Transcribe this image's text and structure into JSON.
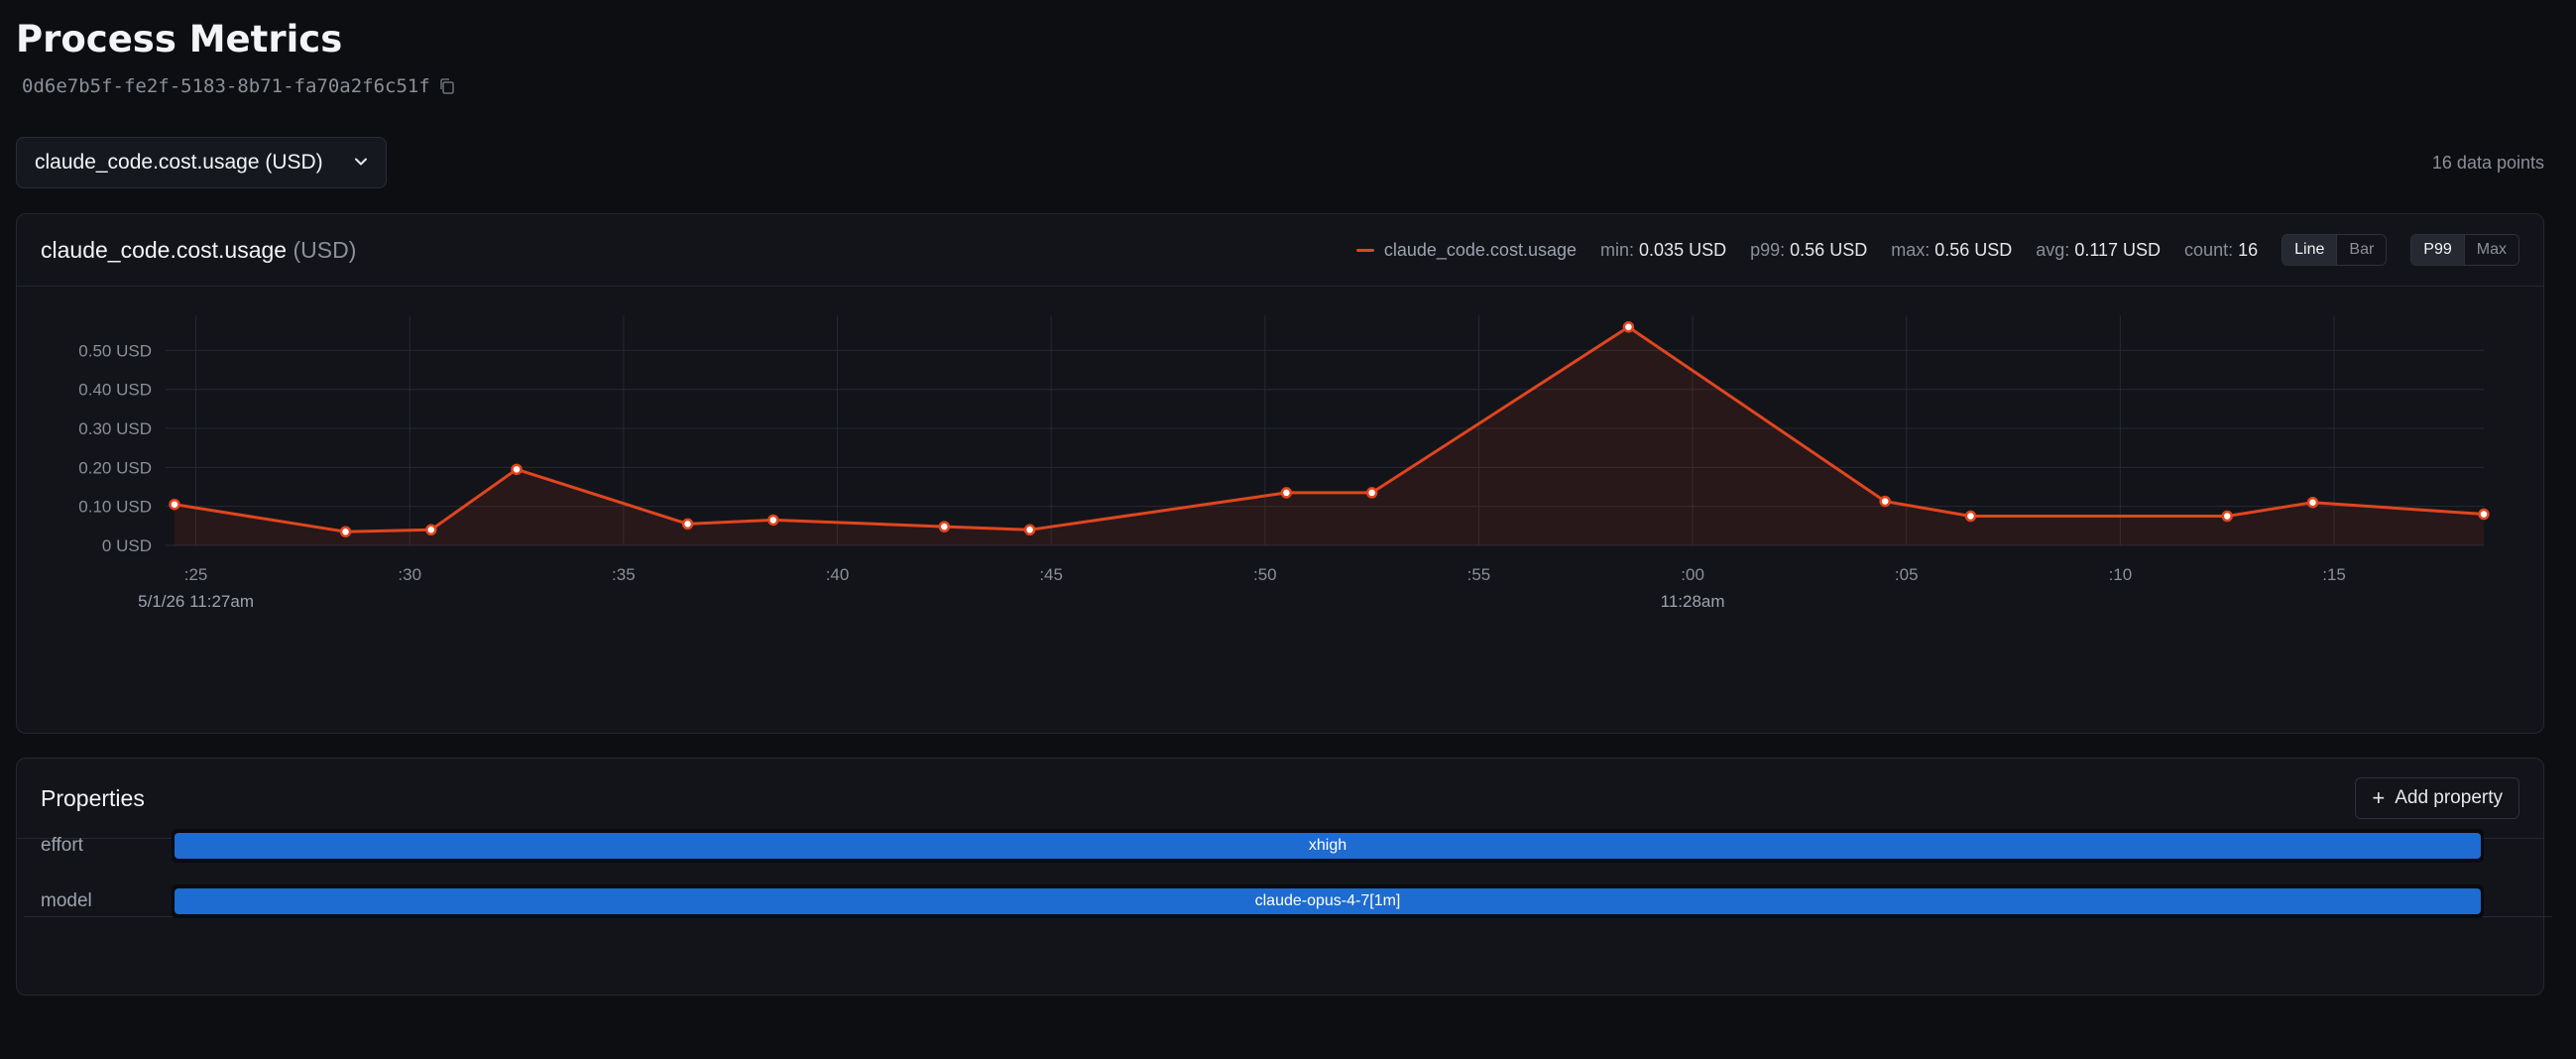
{
  "page": {
    "title": "Process Metrics",
    "process_id": "0d6e7b5f-fe2f-5183-8b71-fa70a2f6c51f",
    "metric_select": {
      "value": "claude_code.cost.usage (USD)"
    },
    "data_points_label": "16 data points"
  },
  "chart_card": {
    "title": "claude_code.cost.usage",
    "unit_label": "(USD)",
    "legend": {
      "label": "claude_code.cost.usage",
      "color": "#e0461e"
    },
    "stats": {
      "min_label": "min:",
      "min": "0.035 USD",
      "p99_label": "p99:",
      "p99": "0.56 USD",
      "max_label": "max:",
      "max": "0.56 USD",
      "avg_label": "avg:",
      "avg": "0.117 USD",
      "count_label": "count:",
      "count": "16"
    },
    "chart_type_toggle": {
      "options": [
        "Line",
        "Bar"
      ],
      "selected": "Line"
    },
    "agg_toggle": {
      "options": [
        "P99",
        "Max"
      ],
      "selected": "P99"
    }
  },
  "chart_data": {
    "type": "line",
    "title": "claude_code.cost.usage (USD)",
    "series": [
      {
        "name": "claude_code.cost.usage",
        "color": "#e0461e",
        "x": [
          "11:27:24.5",
          "11:27:28.5",
          "11:27:30.5",
          "11:27:32.5",
          "11:27:36.5",
          "11:27:38.5",
          "11:27:42.5",
          "11:27:44.5",
          "11:27:50.5",
          "11:27:52.5",
          "11:27:58.5",
          "11:28:04.5",
          "11:28:06.5",
          "11:28:12.5",
          "11:28:14.5",
          "11:28:18.5"
        ],
        "values": [
          0.105,
          0.035,
          0.04,
          0.195,
          0.055,
          0.065,
          0.048,
          0.04,
          0.135,
          0.135,
          0.56,
          0.113,
          0.075,
          0.075,
          0.11,
          0.08
        ]
      }
    ],
    "ylim": [
      0,
      0.59
    ],
    "yticks": [
      {
        "value": 0.0,
        "label": "0 USD"
      },
      {
        "value": 0.1,
        "label": "0.10 USD"
      },
      {
        "value": 0.2,
        "label": "0.20 USD"
      },
      {
        "value": 0.3,
        "label": "0.30 USD"
      },
      {
        "value": 0.4,
        "label": "0.40 USD"
      },
      {
        "value": 0.5,
        "label": "0.50 USD"
      }
    ],
    "xlim": [
      "11:27:24.5",
      "11:28:18.5"
    ],
    "xticks": [
      {
        "t": "11:27:25",
        "label": ":25",
        "sub": "5/1/26 11:27am"
      },
      {
        "t": "11:27:30",
        "label": ":30",
        "sub": ""
      },
      {
        "t": "11:27:35",
        "label": ":35",
        "sub": ""
      },
      {
        "t": "11:27:40",
        "label": ":40",
        "sub": ""
      },
      {
        "t": "11:27:45",
        "label": ":45",
        "sub": ""
      },
      {
        "t": "11:27:50",
        "label": ":50",
        "sub": ""
      },
      {
        "t": "11:27:55",
        "label": ":55",
        "sub": ""
      },
      {
        "t": "11:28:00",
        "label": ":00",
        "sub": "11:28am"
      },
      {
        "t": "11:28:05",
        "label": ":05",
        "sub": ""
      },
      {
        "t": "11:28:10",
        "label": ":10",
        "sub": ""
      },
      {
        "t": "11:28:15",
        "label": ":15",
        "sub": ""
      }
    ],
    "grid": true,
    "area_fill": true
  },
  "properties": {
    "title": "Properties",
    "add_label": "Add property",
    "rows": [
      {
        "key": "effort",
        "value": "xhigh"
      },
      {
        "key": "model",
        "value": "claude-opus-4-7[1m]"
      }
    ],
    "bar_color": "#1e6bd1"
  }
}
